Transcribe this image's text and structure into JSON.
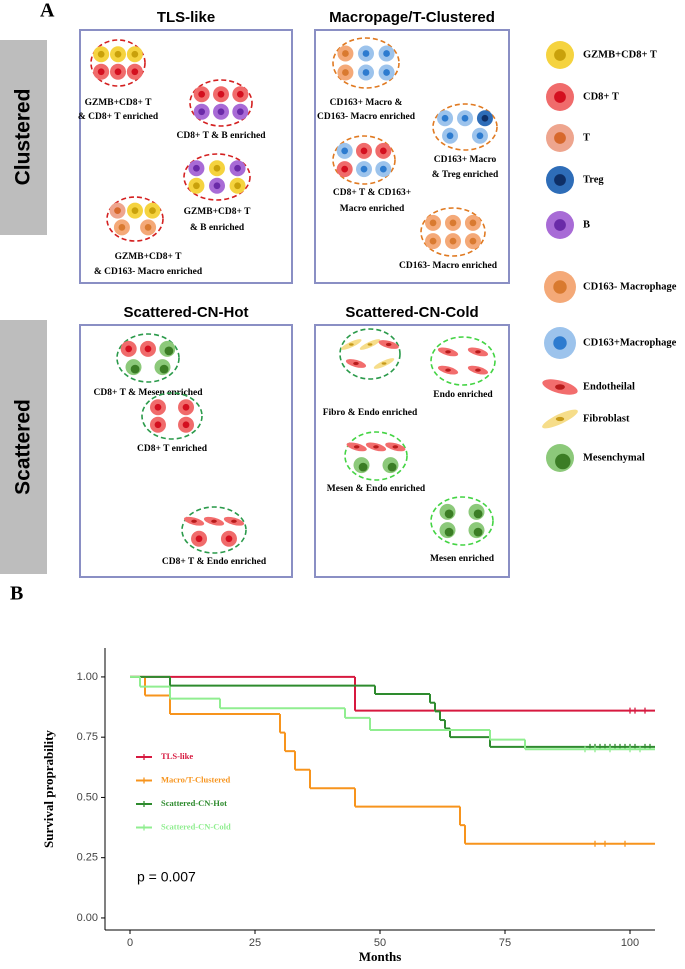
{
  "panel_a": {
    "label": "A",
    "row_labels": [
      "Clustered",
      "Scattered"
    ],
    "boxes": [
      {
        "title": "TLS-like",
        "groups": [
          [
            "GZMB+CD8+ T",
            "& CD8+ T enriched"
          ],
          [
            "CD8+ T & B enriched"
          ],
          [
            "GZMB+CD8+ T",
            "& B enriched"
          ],
          [
            "GZMB+CD8+ T",
            "& CD163- Macro enriched"
          ]
        ]
      },
      {
        "title": "Macropage/T-Clustered",
        "groups": [
          [
            "CD163+ Macro &",
            "CD163- Macro enriched"
          ],
          [
            "CD163+ Macro",
            "& Treg enriched"
          ],
          [
            "CD8+ T & CD163+",
            "Macro enriched"
          ],
          [
            "CD163- Macro enriched"
          ]
        ]
      },
      {
        "title": "Scattered-CN-Hot",
        "groups": [
          [
            "CD8+ T & Mesen enriched"
          ],
          [
            "CD8+ T enriched"
          ],
          [
            "CD8+ T & Endo enriched"
          ]
        ]
      },
      {
        "title": "Scattered-CN-Cold",
        "groups": [
          [
            "Fibro & Endo enriched"
          ],
          [
            "Endo enriched"
          ],
          [
            "Mesen & Endo enriched"
          ],
          [
            "Mesen enriched"
          ]
        ]
      }
    ],
    "legend": [
      "GZMB+CD8+ T",
      "CD8+ T",
      "T",
      "Treg",
      "B",
      "CD163- Macrophage",
      "CD163+Macrophage",
      "Endotheilal",
      "Fibroblast",
      "Mesenchymal"
    ]
  },
  "panel_b_label": "B",
  "chart_data": {
    "type": "survival",
    "x_label": "Months",
    "y_label": "Survival proprability",
    "annotation": "p = 0.007",
    "xlim": [
      -5,
      105
    ],
    "ylim": [
      -0.05,
      1.12
    ],
    "xticks": [
      0,
      25,
      50,
      75,
      100
    ],
    "yticks": [
      {
        "value": 0,
        "label": "0.00"
      },
      {
        "value": 0.25,
        "label": "0.25"
      },
      {
        "value": 0.5,
        "label": "0.50"
      },
      {
        "value": 0.75,
        "label": "0.75"
      },
      {
        "value": 1,
        "label": "1.00"
      }
    ],
    "series": [
      {
        "name": "TLS-like",
        "color": "#d7193f",
        "x": [
          0,
          45,
          105
        ],
        "values": [
          1.0,
          0.86,
          0.86
        ],
        "censored_x": [
          100,
          101,
          103
        ]
      },
      {
        "name": "Macro/T-Clustered",
        "color": "#f7941d",
        "x": [
          0,
          3,
          8,
          30,
          31,
          33,
          36,
          45,
          66,
          67,
          105
        ],
        "values": [
          1.0,
          0.923,
          0.846,
          0.769,
          0.692,
          0.615,
          0.538,
          0.462,
          0.385,
          0.308,
          0.308
        ],
        "censored_x": [
          93,
          95,
          99
        ]
      },
      {
        "name": "Scattered-CN-Hot",
        "color": "#2e8b2e",
        "x": [
          0,
          8,
          49,
          60,
          61,
          62,
          63,
          64,
          72,
          105
        ],
        "values": [
          1.0,
          0.964,
          0.929,
          0.893,
          0.857,
          0.821,
          0.786,
          0.75,
          0.71,
          0.71
        ],
        "censored_x": [
          92,
          93,
          94,
          95,
          96,
          97,
          98,
          99,
          100,
          101,
          103,
          104
        ]
      },
      {
        "name": "Scattered-CN-Cold",
        "color": "#90ee90",
        "x": [
          0,
          2,
          8,
          18,
          43,
          48,
          72,
          79,
          105
        ],
        "values": [
          1.0,
          0.96,
          0.91,
          0.87,
          0.83,
          0.78,
          0.74,
          0.7,
          0.7
        ],
        "censored_x": [
          91,
          93,
          96,
          100,
          102
        ]
      }
    ]
  }
}
